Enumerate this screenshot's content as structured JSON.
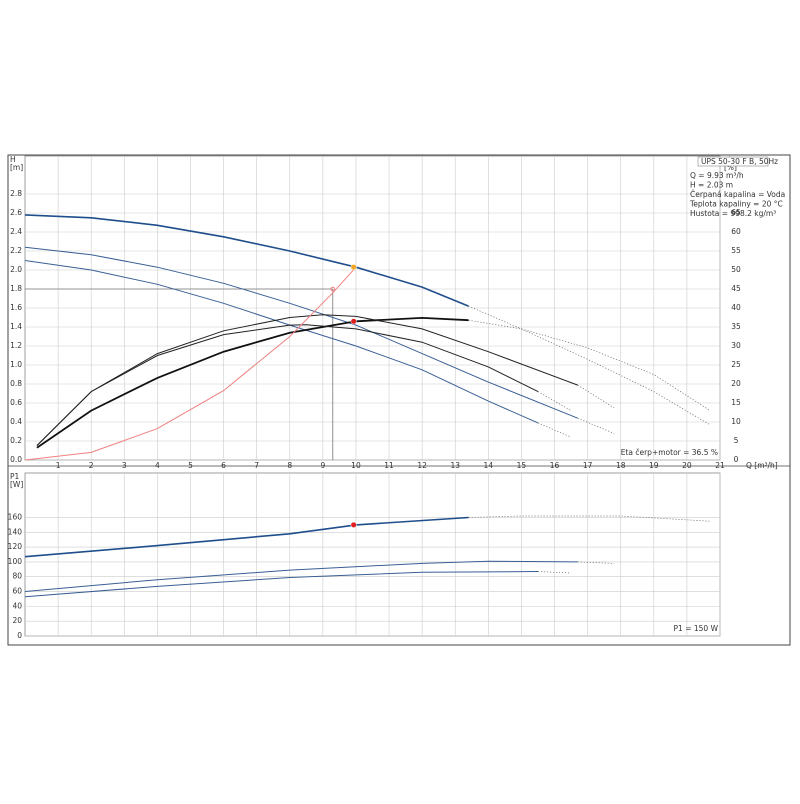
{
  "chart_data": [
    {
      "type": "line",
      "ylabel": [
        "H",
        "[m]"
      ],
      "y2label": [
        "eta",
        "[%]"
      ],
      "xlabel": "Q [m³/h]",
      "xlim": [
        0,
        21
      ],
      "xticks": [
        1,
        2,
        3,
        4,
        5,
        6,
        7,
        8,
        9,
        10,
        11,
        12,
        13,
        14,
        15,
        16,
        17,
        18,
        19,
        20,
        21
      ],
      "ylim": [
        0,
        3.2
      ],
      "yticks": [
        {
          "value": 0,
          "label": "0.0"
        },
        {
          "value": 0.2,
          "label": "0.2"
        },
        {
          "value": 0.4,
          "label": "0.4"
        },
        {
          "value": 0.6,
          "label": "0.6"
        },
        {
          "value": 0.8,
          "label": "0.8"
        },
        {
          "value": 1,
          "label": "1.0"
        },
        {
          "value": 1.2,
          "label": "1.2"
        },
        {
          "value": 1.4,
          "label": "1.4"
        },
        {
          "value": 1.6,
          "label": "1.6"
        },
        {
          "value": 1.8,
          "label": "1.8"
        },
        {
          "value": 2,
          "label": "2.0"
        },
        {
          "value": 2.2,
          "label": "2.2"
        },
        {
          "value": 2.4,
          "label": "2.4"
        },
        {
          "value": 2.6,
          "label": "2.6"
        },
        {
          "value": 2.8,
          "label": "2.8"
        }
      ],
      "y2lim": [
        0,
        80
      ],
      "y2ticks": [
        0,
        5,
        10,
        15,
        20,
        25,
        30,
        35,
        40,
        45,
        50,
        55,
        60,
        65
      ],
      "grid": true,
      "annotations": [
        "UPS 50-30 F B, 50Hz",
        "Q = 9.93 m³/h",
        "H = 2.03 m",
        "Čerpaná kapalina = Voda",
        "Teplota kapaliny = 20 °C",
        "Hustota = 998.2 kg/m³"
      ],
      "note": "Eta čerp+motor = 36.5 %",
      "series": [
        {
          "color": "#1f4e8c",
          "width": 1.6,
          "style": "solid",
          "x": [
            0,
            2,
            4,
            6,
            8,
            10,
            12,
            13.4
          ],
          "values": [
            2.58,
            2.55,
            2.47,
            2.35,
            2.2,
            2.03,
            1.82,
            1.62
          ]
        },
        {
          "color": "#666",
          "width": 0.7,
          "style": "dotted",
          "x": [
            13.4,
            15,
            17,
            19,
            20.7
          ],
          "values": [
            1.62,
            1.38,
            1.06,
            0.72,
            0.37
          ]
        },
        {
          "color": "#3a5f95",
          "width": 1,
          "style": "solid",
          "x": [
            0,
            2,
            4,
            6,
            8,
            10,
            12,
            14,
            16.7
          ],
          "values": [
            2.24,
            2.16,
            2.03,
            1.86,
            1.65,
            1.42,
            1.12,
            0.82,
            0.44
          ]
        },
        {
          "color": "#666",
          "width": 0.7,
          "style": "dotted",
          "x": [
            16.7,
            17.8
          ],
          "values": [
            0.44,
            0.28
          ]
        },
        {
          "color": "#3a5f95",
          "width": 1,
          "style": "solid",
          "x": [
            0,
            2,
            4,
            6,
            8,
            10,
            12,
            14,
            15.5
          ],
          "values": [
            2.1,
            2.0,
            1.85,
            1.65,
            1.42,
            1.2,
            0.95,
            0.62,
            0.39
          ]
        },
        {
          "color": "#666",
          "width": 0.7,
          "style": "dotted",
          "x": [
            15.5,
            16.5
          ],
          "values": [
            0.39,
            0.24
          ]
        },
        {
          "color": "#111",
          "width": 1.8,
          "style": "solid",
          "axis": "y2",
          "x": [
            0.36,
            2,
            4,
            6,
            8,
            10,
            12,
            13.4
          ],
          "values": [
            3.2,
            13,
            21.6,
            28.5,
            33.5,
            36.5,
            37.4,
            36.8
          ]
        },
        {
          "color": "#666",
          "width": 0.7,
          "style": "dotted",
          "axis": "y2",
          "x": [
            13.4,
            15,
            17,
            19,
            20.7
          ],
          "values": [
            36.8,
            34.5,
            29.5,
            22.5,
            13
          ]
        },
        {
          "color": "#222",
          "width": 1,
          "style": "solid",
          "axis": "y2",
          "x": [
            0.36,
            2,
            4,
            6,
            8,
            9,
            10,
            12,
            14,
            16.7
          ],
          "values": [
            3.8,
            18,
            28,
            34,
            37.5,
            38.2,
            37.8,
            34.5,
            28.5,
            19.7
          ]
        },
        {
          "color": "#666",
          "width": 0.7,
          "style": "dotted",
          "axis": "y2",
          "x": [
            16.7,
            17.8
          ],
          "values": [
            19.7,
            13.7
          ]
        },
        {
          "color": "#222",
          "width": 1,
          "style": "solid",
          "axis": "y2",
          "x": [
            0.36,
            2,
            4,
            6,
            8,
            8.5,
            10,
            12,
            14,
            15.5
          ],
          "values": [
            3.8,
            18,
            27.5,
            33,
            35.5,
            35.6,
            34.5,
            31,
            24.5,
            18
          ]
        },
        {
          "color": "#666",
          "width": 0.7,
          "style": "dotted",
          "axis": "y2",
          "x": [
            15.5,
            16.5
          ],
          "values": [
            18,
            13
          ]
        },
        {
          "color": "#f08080",
          "width": 1,
          "style": "solid",
          "x": [
            0,
            2,
            4,
            6,
            8,
            9.3,
            10
          ],
          "values": [
            0,
            0.08,
            0.33,
            0.73,
            1.3,
            1.76,
            2.03
          ]
        }
      ],
      "guides": {
        "x": 9.3,
        "y": 1.8
      },
      "markers": [
        {
          "x": 9.93,
          "value": 2.03,
          "color": "#f5a623"
        },
        {
          "x": 9.93,
          "value": 36.5,
          "color": "#e02020",
          "axis": "y2"
        }
      ]
    },
    {
      "type": "line",
      "ylabel": [
        "P1",
        "[W]"
      ],
      "xlim": [
        0,
        21
      ],
      "ylim": [
        0,
        220
      ],
      "yticks": [
        0,
        20,
        40,
        60,
        80,
        100,
        120,
        140,
        160
      ],
      "grid": true,
      "note": "P1 = 150 W",
      "series": [
        {
          "color": "#1f4e8c",
          "width": 1.6,
          "style": "solid",
          "x": [
            0,
            4,
            8,
            10,
            13.4
          ],
          "values": [
            107,
            122,
            138,
            150,
            160
          ]
        },
        {
          "color": "#666",
          "width": 0.7,
          "style": "dotted",
          "x": [
            13.4,
            15,
            18,
            20.7
          ],
          "values": [
            160,
            162,
            162,
            155
          ]
        },
        {
          "color": "#3a5f95",
          "width": 1,
          "style": "solid",
          "x": [
            0,
            4,
            8,
            12,
            14,
            16.7
          ],
          "values": [
            60,
            76,
            89,
            98,
            101,
            100
          ]
        },
        {
          "color": "#666",
          "width": 0.7,
          "style": "dotted",
          "x": [
            16.7,
            17.8
          ],
          "values": [
            100,
            98
          ]
        },
        {
          "color": "#3a5f95",
          "width": 1,
          "style": "solid",
          "x": [
            0,
            4,
            8,
            12,
            15.5
          ],
          "values": [
            53,
            67,
            79,
            86,
            87
          ]
        },
        {
          "color": "#666",
          "width": 0.7,
          "style": "dotted",
          "x": [
            15.5,
            16.5
          ],
          "values": [
            87,
            85
          ]
        }
      ],
      "markers": [
        {
          "x": 9.93,
          "value": 150,
          "color": "#e02020"
        }
      ]
    }
  ]
}
